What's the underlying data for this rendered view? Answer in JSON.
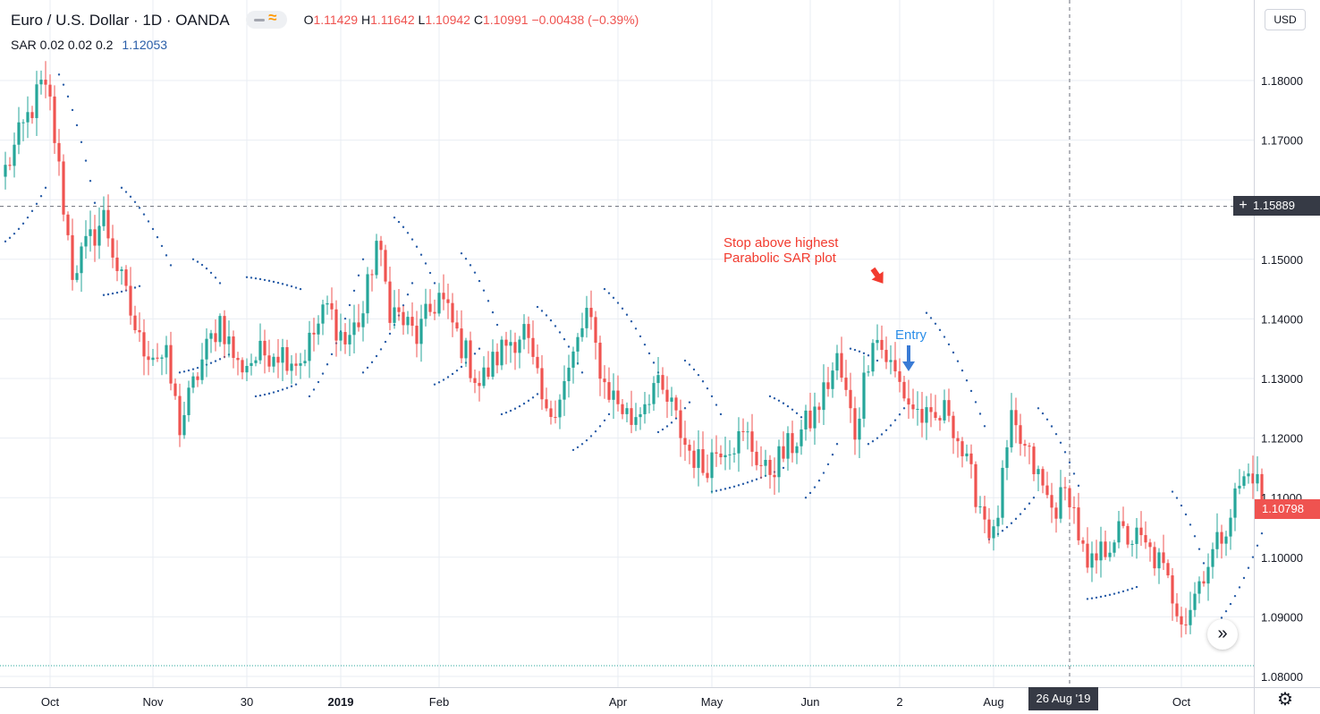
{
  "legend": {
    "symbol": "Euro / U.S. Dollar · 1D · OANDA",
    "o_label": "O",
    "o_value": "1.11429",
    "h_label": "H",
    "h_value": "1.11642",
    "l_label": "L",
    "l_value": "1.10942",
    "c_label": "C",
    "c_value": "1.10991",
    "change": "−0.00438 (−0.39%)",
    "sar_label": "SAR 0.02 0.02 0.2",
    "sar_value": "1.12053"
  },
  "currency_button": "USD",
  "crosshair_price": "1.15889",
  "last_price": "1.10798",
  "crosshair_date": "26 Aug '19",
  "annotations": {
    "stop_text_line1": "Stop above highest",
    "stop_text_line2": "Parabolic SAR plot",
    "entry_text": "Entry"
  },
  "colors": {
    "up": "#26a69a",
    "down": "#ef5350",
    "sar": "#2a5ea8",
    "grid": "#e9edf3",
    "annotation_red": "#f23b2f",
    "annotation_blue": "#2b8ee8",
    "axis_text": "#131722"
  },
  "icons": [
    "minus-icon",
    "indicator-waves-icon",
    "crosshair-plus-icon",
    "gear-icon",
    "scroll-right-icon",
    "down-arrow-icon"
  ],
  "chart_data": {
    "type": "candlestick",
    "ylim": [
      1.0775,
      1.1875
    ],
    "y_ticks": [
      1.18,
      1.17,
      1.16,
      1.15,
      1.14,
      1.13,
      1.12,
      1.11,
      1.1,
      1.09,
      1.08
    ],
    "y_tick_labels": [
      "1.18000",
      "1.17000",
      "1.16000",
      "1.15000",
      "1.14000",
      "1.13000",
      "1.12000",
      "1.11000",
      "1.10000",
      "1.09000",
      "1.08000"
    ],
    "x_ticks": [
      {
        "label": "Oct",
        "bold": false,
        "idx": 10
      },
      {
        "label": "Nov",
        "bold": false,
        "idx": 33
      },
      {
        "label": "30",
        "bold": false,
        "idx": 54
      },
      {
        "label": "2019",
        "bold": true,
        "idx": 75
      },
      {
        "label": "Feb",
        "bold": false,
        "idx": 97
      },
      {
        "label": "Apr",
        "bold": false,
        "idx": 137
      },
      {
        "label": "May",
        "bold": false,
        "idx": 158
      },
      {
        "label": "Jun",
        "bold": false,
        "idx": 180
      },
      {
        "label": "2",
        "bold": false,
        "idx": 200
      },
      {
        "label": "Aug",
        "bold": false,
        "idx": 221
      },
      {
        "label": "Oct",
        "bold": false,
        "idx": 263
      }
    ],
    "hline_value": 1.15889,
    "dotted_hline_value": 1.0818,
    "crosshair_idx": 238,
    "anchors": [
      [
        0,
        1.165
      ],
      [
        8,
        1.179
      ],
      [
        10,
        1.176
      ],
      [
        15,
        1.148
      ],
      [
        22,
        1.157
      ],
      [
        26,
        1.146
      ],
      [
        30,
        1.136
      ],
      [
        36,
        1.133
      ],
      [
        39,
        1.122
      ],
      [
        44,
        1.133
      ],
      [
        48,
        1.14
      ],
      [
        52,
        1.132
      ],
      [
        60,
        1.135
      ],
      [
        66,
        1.133
      ],
      [
        72,
        1.142
      ],
      [
        76,
        1.136
      ],
      [
        80,
        1.141
      ],
      [
        83,
        1.153
      ],
      [
        86,
        1.142
      ],
      [
        92,
        1.137
      ],
      [
        97,
        1.144
      ],
      [
        100,
        1.139
      ],
      [
        106,
        1.129
      ],
      [
        112,
        1.136
      ],
      [
        116,
        1.138
      ],
      [
        121,
        1.123
      ],
      [
        126,
        1.131
      ],
      [
        130,
        1.141
      ],
      [
        134,
        1.129
      ],
      [
        140,
        1.123
      ],
      [
        145,
        1.129
      ],
      [
        149,
        1.125
      ],
      [
        152,
        1.119
      ],
      [
        156,
        1.115
      ],
      [
        160,
        1.119
      ],
      [
        166,
        1.12
      ],
      [
        170,
        1.114
      ],
      [
        176,
        1.119
      ],
      [
        181,
        1.124
      ],
      [
        186,
        1.133
      ],
      [
        190,
        1.121
      ],
      [
        194,
        1.138
      ],
      [
        198,
        1.132
      ],
      [
        202,
        1.126
      ],
      [
        207,
        1.122
      ],
      [
        211,
        1.125
      ],
      [
        215,
        1.115
      ],
      [
        221,
        1.103
      ],
      [
        225,
        1.122
      ],
      [
        230,
        1.115
      ],
      [
        234,
        1.108
      ],
      [
        238,
        1.111
      ],
      [
        242,
        1.097
      ],
      [
        248,
        1.104
      ],
      [
        253,
        1.103
      ],
      [
        258,
        1.099
      ],
      [
        262,
        1.092
      ],
      [
        264,
        1.09
      ],
      [
        268,
        1.098
      ],
      [
        271,
        1.102
      ],
      [
        276,
        1.112
      ],
      [
        279,
        1.1145
      ],
      [
        281,
        1.11
      ]
    ],
    "sar_segments": [
      {
        "from": 0,
        "to": 9,
        "start": 1.153,
        "end": 1.162
      },
      {
        "from": 12,
        "to": 21,
        "start": 1.181,
        "end": 1.1555
      },
      {
        "from": 22,
        "to": 30,
        "start": 1.144,
        "end": 1.1455
      },
      {
        "from": 26,
        "to": 37,
        "start": 1.162,
        "end": 1.149
      },
      {
        "from": 39,
        "to": 50,
        "start": 1.131,
        "end": 1.134
      },
      {
        "from": 42,
        "to": 48,
        "start": 1.15,
        "end": 1.146
      },
      {
        "from": 54,
        "to": 66,
        "start": 1.147,
        "end": 1.145
      },
      {
        "from": 56,
        "to": 65,
        "start": 1.127,
        "end": 1.129
      },
      {
        "from": 68,
        "to": 80,
        "start": 1.127,
        "end": 1.15
      },
      {
        "from": 80,
        "to": 91,
        "start": 1.131,
        "end": 1.146
      },
      {
        "from": 87,
        "to": 96,
        "start": 1.157,
        "end": 1.146
      },
      {
        "from": 96,
        "to": 106,
        "start": 1.129,
        "end": 1.135
      },
      {
        "from": 102,
        "to": 110,
        "start": 1.151,
        "end": 1.139
      },
      {
        "from": 111,
        "to": 120,
        "start": 1.124,
        "end": 1.128
      },
      {
        "from": 119,
        "to": 129,
        "start": 1.142,
        "end": 1.131
      },
      {
        "from": 127,
        "to": 135,
        "start": 1.118,
        "end": 1.124
      },
      {
        "from": 134,
        "to": 146,
        "start": 1.145,
        "end": 1.131
      },
      {
        "from": 146,
        "to": 153,
        "start": 1.121,
        "end": 1.126
      },
      {
        "from": 152,
        "to": 160,
        "start": 1.133,
        "end": 1.124
      },
      {
        "from": 158,
        "to": 174,
        "start": 1.111,
        "end": 1.115
      },
      {
        "from": 171,
        "to": 180,
        "start": 1.127,
        "end": 1.122
      },
      {
        "from": 179,
        "to": 186,
        "start": 1.11,
        "end": 1.119
      },
      {
        "from": 189,
        "to": 195,
        "start": 1.135,
        "end": 1.133
      },
      {
        "from": 193,
        "to": 201,
        "start": 1.119,
        "end": 1.125
      },
      {
        "from": 206,
        "to": 219,
        "start": 1.141,
        "end": 1.122
      },
      {
        "from": 220,
        "to": 230,
        "start": 1.103,
        "end": 1.11
      },
      {
        "from": 231,
        "to": 240,
        "start": 1.125,
        "end": 1.112
      },
      {
        "from": 242,
        "to": 253,
        "start": 1.093,
        "end": 1.095
      },
      {
        "from": 261,
        "to": 268,
        "start": 1.111,
        "end": 1.099
      },
      {
        "from": 270,
        "to": 281,
        "start": 1.088,
        "end": 1.104
      }
    ],
    "stop_arrow_idx": 197,
    "entry_arrow_idx": 204
  }
}
